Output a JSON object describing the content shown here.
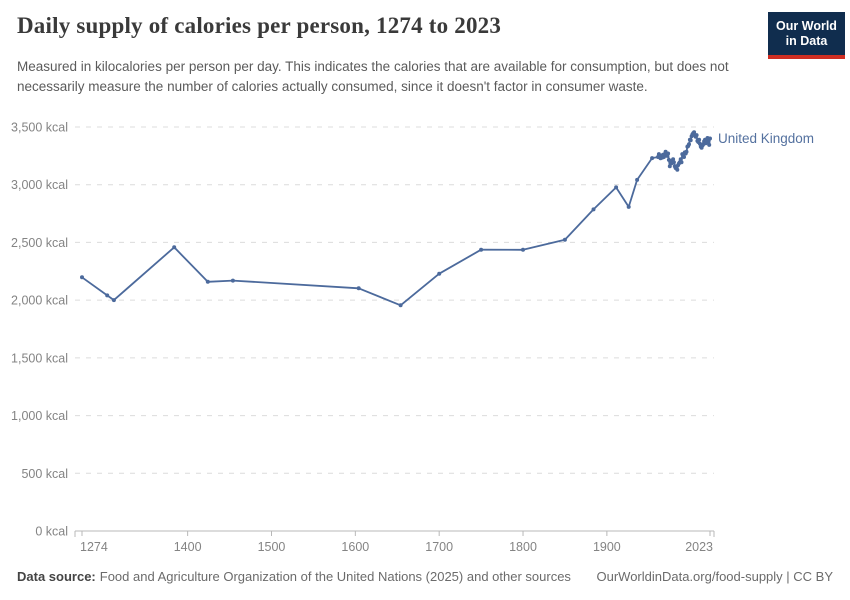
{
  "header": {
    "title": "Daily supply of calories per person, 1274 to 2023",
    "subtitle": "Measured in kilocalories per person per day. This indicates the calories that are available for consumption, but does not necessarily measure the number of calories actually consumed, since it doesn't factor in consumer waste.",
    "logo": {
      "line1": "Our World",
      "line2": "in Data"
    }
  },
  "footer": {
    "datasource_label": "Data source:",
    "datasource_text": "Food and Agriculture Organization of the United Nations (2025) and other sources",
    "link": "OurWorldinData.org/food-supply | CC BY"
  },
  "colors": {
    "line": "#4C6A9C",
    "entity_label": "#54719f",
    "grid": "#dcdcdc",
    "axis": "#b8b8b8",
    "tick_text": "#848484",
    "logo_bg": "#102d4e",
    "logo_red": "#cf2e22"
  },
  "chart_data": {
    "type": "line",
    "title": "Daily supply of calories per person, 1274 to 2023",
    "xlabel": "",
    "ylabel": "",
    "xlim": [
      1274,
      2023
    ],
    "ylim": [
      0,
      3500
    ],
    "x_ticks": [
      1274,
      1400,
      1500,
      1600,
      1700,
      1800,
      1900,
      2023
    ],
    "y_ticks": [
      0,
      500,
      1000,
      1500,
      2000,
      2500,
      3000,
      3500
    ],
    "y_tick_suffix": " kcal",
    "grid": "dashed-horizontal",
    "legend_position": "end-of-line-label",
    "series": [
      {
        "name": "United Kingdom",
        "points": [
          [
            1274,
            2198
          ],
          [
            1304,
            2041
          ],
          [
            1312,
            2000
          ],
          [
            1384,
            2458
          ],
          [
            1424,
            2159
          ],
          [
            1454,
            2169
          ],
          [
            1604,
            2103
          ],
          [
            1654,
            1955
          ],
          [
            1700,
            2229
          ],
          [
            1750,
            2437
          ],
          [
            1800,
            2436
          ],
          [
            1850,
            2524
          ],
          [
            1884,
            2786
          ],
          [
            1911,
            2977
          ],
          [
            1926,
            2808
          ],
          [
            1936,
            3042
          ],
          [
            1954,
            3231
          ],
          [
            1961,
            3240
          ],
          [
            1962,
            3265
          ],
          [
            1963,
            3245
          ],
          [
            1964,
            3230
          ],
          [
            1965,
            3250
          ],
          [
            1966,
            3235
          ],
          [
            1967,
            3260
          ],
          [
            1968,
            3240
          ],
          [
            1969,
            3265
          ],
          [
            1970,
            3285
          ],
          [
            1971,
            3260
          ],
          [
            1972,
            3250
          ],
          [
            1973,
            3270
          ],
          [
            1974,
            3215
          ],
          [
            1975,
            3160
          ],
          [
            1976,
            3205
          ],
          [
            1977,
            3185
          ],
          [
            1978,
            3205
          ],
          [
            1979,
            3220
          ],
          [
            1980,
            3195
          ],
          [
            1981,
            3160
          ],
          [
            1982,
            3145
          ],
          [
            1983,
            3155
          ],
          [
            1984,
            3130
          ],
          [
            1985,
            3170
          ],
          [
            1986,
            3185
          ],
          [
            1987,
            3195
          ],
          [
            1988,
            3220
          ],
          [
            1989,
            3195
          ],
          [
            1990,
            3265
          ],
          [
            1991,
            3245
          ],
          [
            1992,
            3240
          ],
          [
            1993,
            3280
          ],
          [
            1994,
            3270
          ],
          [
            1995,
            3285
          ],
          [
            1996,
            3330
          ],
          [
            1997,
            3335
          ],
          [
            1998,
            3350
          ],
          [
            1999,
            3390
          ],
          [
            2000,
            3385
          ],
          [
            2001,
            3420
          ],
          [
            2002,
            3435
          ],
          [
            2003,
            3445
          ],
          [
            2004,
            3455
          ],
          [
            2005,
            3430
          ],
          [
            2006,
            3415
          ],
          [
            2007,
            3430
          ],
          [
            2008,
            3380
          ],
          [
            2009,
            3370
          ],
          [
            2010,
            3390
          ],
          [
            2011,
            3355
          ],
          [
            2012,
            3330
          ],
          [
            2013,
            3320
          ],
          [
            2014,
            3340
          ],
          [
            2015,
            3350
          ],
          [
            2016,
            3375
          ],
          [
            2017,
            3390
          ],
          [
            2018,
            3360
          ],
          [
            2019,
            3380
          ],
          [
            2020,
            3405
          ],
          [
            2021,
            3370
          ],
          [
            2022,
            3345
          ],
          [
            2023,
            3400
          ]
        ]
      }
    ]
  }
}
